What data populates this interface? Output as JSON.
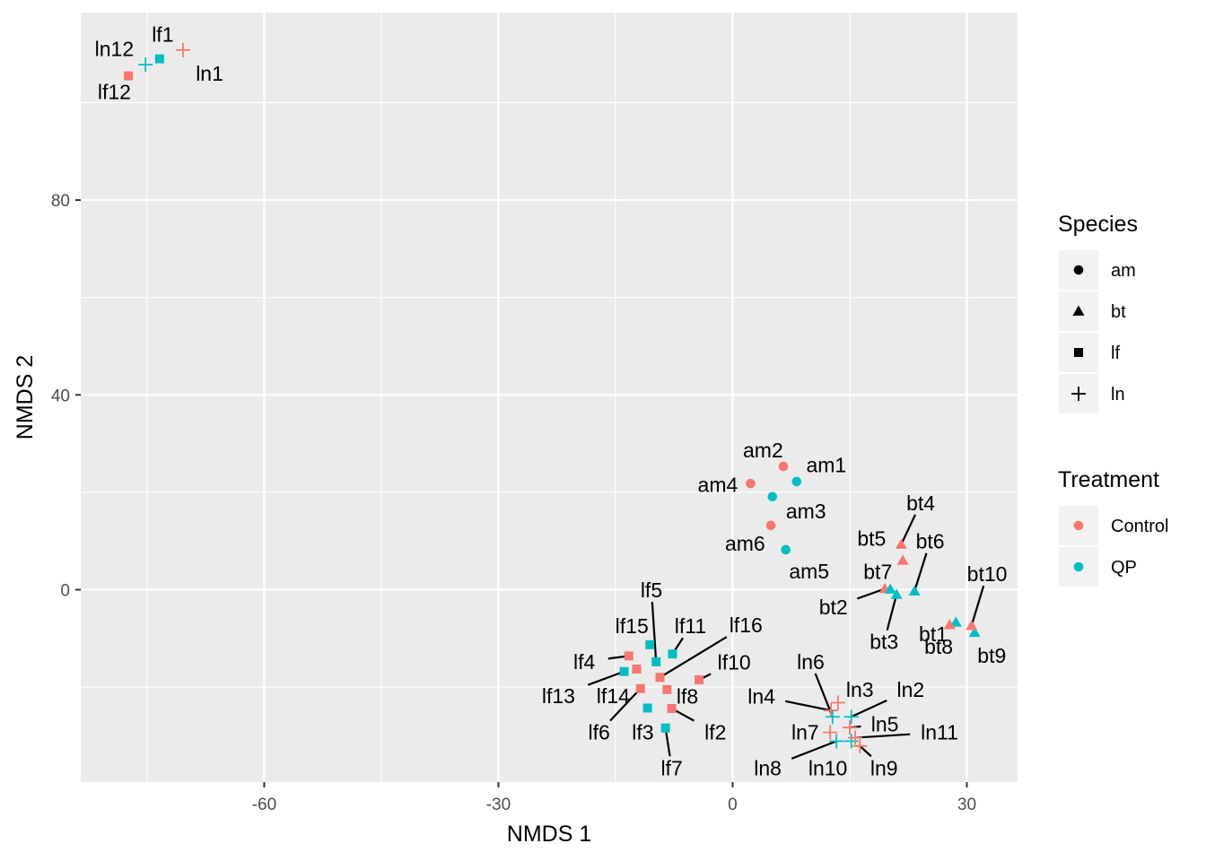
{
  "chart_data": {
    "type": "scatter",
    "xlabel": "NMDS 1",
    "ylabel": "NMDS 2",
    "xlim": [
      -83.5,
      36.5
    ],
    "ylim": [
      -39.5,
      118.5
    ],
    "xticks": [
      -60,
      -30,
      0,
      30
    ],
    "yticks": [
      0,
      40,
      80
    ],
    "grid": true,
    "legend_placement": "right",
    "colors": {
      "Control": "#f8766d",
      "QP": "#00bfc4"
    },
    "legends": [
      {
        "title": "Species",
        "entries": [
          {
            "label": "am",
            "shape": "circle"
          },
          {
            "label": "bt",
            "shape": "triangle"
          },
          {
            "label": "lf",
            "shape": "square"
          },
          {
            "label": "ln",
            "shape": "plus"
          }
        ]
      },
      {
        "title": "Treatment",
        "entries": [
          {
            "label": "Control",
            "color": "#f8766d"
          },
          {
            "label": "QP",
            "color": "#00bfc4"
          }
        ]
      }
    ],
    "points": [
      {
        "label": "lf1",
        "x": -73.4,
        "y": 109.0,
        "species": "lf",
        "treatment": "QP",
        "lx": -73.0,
        "ly": 114.0,
        "line": false
      },
      {
        "label": "ln1",
        "x": -70.4,
        "y": 110.8,
        "species": "ln",
        "treatment": "Control",
        "lx": -67.0,
        "ly": 106.0,
        "line": false
      },
      {
        "label": "ln12",
        "x": -75.2,
        "y": 107.8,
        "species": "ln",
        "treatment": "QP",
        "lx": -79.2,
        "ly": 111.0,
        "line": false
      },
      {
        "label": "lf12",
        "x": -77.4,
        "y": 105.5,
        "species": "lf",
        "treatment": "Control",
        "lx": -79.2,
        "ly": 102.2,
        "line": false
      },
      {
        "label": "am1",
        "x": 8.2,
        "y": 22.2,
        "species": "am",
        "treatment": "QP",
        "lx": 12.0,
        "ly": 25.6,
        "line": false
      },
      {
        "label": "am2",
        "x": 6.5,
        "y": 25.3,
        "species": "am",
        "treatment": "Control",
        "lx": 3.9,
        "ly": 28.6,
        "line": false
      },
      {
        "label": "am3",
        "x": 5.1,
        "y": 19.1,
        "species": "am",
        "treatment": "QP",
        "lx": 9.4,
        "ly": 16.1,
        "line": false
      },
      {
        "label": "am4",
        "x": 2.3,
        "y": 21.8,
        "species": "am",
        "treatment": "Control",
        "lx": -1.9,
        "ly": 21.5,
        "line": false
      },
      {
        "label": "am5",
        "x": 6.8,
        "y": 8.2,
        "species": "am",
        "treatment": "QP",
        "lx": 9.8,
        "ly": 3.8,
        "line": false
      },
      {
        "label": "am6",
        "x": 4.9,
        "y": 13.2,
        "species": "am",
        "treatment": "Control",
        "lx": 1.6,
        "ly": 9.5,
        "line": false
      },
      {
        "label": "bt1",
        "x": 28.6,
        "y": -6.7,
        "species": "bt",
        "treatment": "QP",
        "lx": 25.7,
        "ly": -9.1,
        "line": false
      },
      {
        "label": "bt2",
        "x": 19.5,
        "y": 0.2,
        "species": "bt",
        "treatment": "Control",
        "lx": 12.9,
        "ly": -3.6,
        "line": true
      },
      {
        "label": "bt3",
        "x": 21.0,
        "y": -1.0,
        "species": "bt",
        "treatment": "QP",
        "lx": 19.4,
        "ly": -10.7,
        "line": true
      },
      {
        "label": "bt4",
        "x": 21.6,
        "y": 9.3,
        "species": "bt",
        "treatment": "Control",
        "lx": 24.1,
        "ly": 17.8,
        "line": true
      },
      {
        "label": "bt5",
        "x": 21.8,
        "y": 6.0,
        "species": "bt",
        "treatment": "Control",
        "lx": 17.8,
        "ly": 10.5,
        "line": false
      },
      {
        "label": "bt6",
        "x": 23.3,
        "y": -0.3,
        "species": "bt",
        "treatment": "QP",
        "lx": 25.3,
        "ly": 9.9,
        "line": true
      },
      {
        "label": "bt7",
        "x": 20.2,
        "y": 0.1,
        "species": "bt",
        "treatment": "QP",
        "lx": 18.6,
        "ly": 3.7,
        "line": false
      },
      {
        "label": "bt8",
        "x": 27.8,
        "y": -7.2,
        "species": "bt",
        "treatment": "Control",
        "lx": 26.4,
        "ly": -11.7,
        "line": false
      },
      {
        "label": "bt9",
        "x": 31.0,
        "y": -8.8,
        "species": "bt",
        "treatment": "QP",
        "lx": 33.2,
        "ly": -13.5,
        "line": false
      },
      {
        "label": "bt10",
        "x": 30.6,
        "y": -7.4,
        "species": "bt",
        "treatment": "Control",
        "lx": 32.6,
        "ly": 3.2,
        "line": true
      },
      {
        "label": "lf2",
        "x": -7.8,
        "y": -24.4,
        "species": "lf",
        "treatment": "Control",
        "lx": -2.2,
        "ly": -29.3,
        "line": true
      },
      {
        "label": "lf3",
        "x": -10.9,
        "y": -24.3,
        "species": "lf",
        "treatment": "QP",
        "lx": -11.5,
        "ly": -29.3,
        "line": false
      },
      {
        "label": "lf4",
        "x": -13.3,
        "y": -13.6,
        "species": "lf",
        "treatment": "Control",
        "lx": -19.0,
        "ly": -14.8,
        "line": true
      },
      {
        "label": "lf5",
        "x": -9.8,
        "y": -14.8,
        "species": "lf",
        "treatment": "QP",
        "lx": -10.4,
        "ly": -0.1,
        "line": true
      },
      {
        "label": "lf6",
        "x": -11.8,
        "y": -20.3,
        "species": "lf",
        "treatment": "Control",
        "lx": -17.1,
        "ly": -29.3,
        "line": true
      },
      {
        "label": "lf7",
        "x": -8.6,
        "y": -28.4,
        "species": "lf",
        "treatment": "QP",
        "lx": -7.8,
        "ly": -36.6,
        "line": true
      },
      {
        "label": "lf8",
        "x": -8.4,
        "y": -20.5,
        "species": "lf",
        "treatment": "Control",
        "lx": -5.8,
        "ly": -21.9,
        "line": false
      },
      {
        "label": "lf10",
        "x": -4.3,
        "y": -18.5,
        "species": "lf",
        "treatment": "Control",
        "lx": 0.2,
        "ly": -14.9,
        "line": true
      },
      {
        "label": "lf11",
        "x": -7.7,
        "y": -13.2,
        "species": "lf",
        "treatment": "QP",
        "lx": -5.4,
        "ly": -7.5,
        "line": true
      },
      {
        "label": "lf13",
        "x": -13.9,
        "y": -16.8,
        "species": "lf",
        "treatment": "QP",
        "lx": -22.3,
        "ly": -21.8,
        "line": true
      },
      {
        "label": "lf14",
        "x": -12.3,
        "y": -16.3,
        "species": "lf",
        "treatment": "Control",
        "lx": -15.3,
        "ly": -21.8,
        "line": false
      },
      {
        "label": "lf15",
        "x": -10.6,
        "y": -11.3,
        "species": "lf",
        "treatment": "QP",
        "lx": -12.9,
        "ly": -7.5,
        "line": false
      },
      {
        "label": "lf16",
        "x": -9.3,
        "y": -18.0,
        "species": "lf",
        "treatment": "Control",
        "lx": 1.7,
        "ly": -7.3,
        "line": true
      },
      {
        "label": "ln2",
        "x": 15.2,
        "y": -26.1,
        "species": "ln",
        "treatment": "QP",
        "lx": 22.8,
        "ly": -20.5,
        "line": true
      },
      {
        "label": "ln3",
        "x": 13.5,
        "y": -23.2,
        "species": "ln",
        "treatment": "Control",
        "lx": 16.3,
        "ly": -20.5,
        "line": false
      },
      {
        "label": "ln4",
        "x": 12.6,
        "y": -24.8,
        "species": "ln",
        "treatment": "Control",
        "lx": 3.7,
        "ly": -21.9,
        "line": true
      },
      {
        "label": "ln5",
        "x": 15.0,
        "y": -28.3,
        "species": "ln",
        "treatment": "Control",
        "lx": 19.5,
        "ly": -27.6,
        "line": true
      },
      {
        "label": "ln6",
        "x": 12.8,
        "y": -26.1,
        "species": "ln",
        "treatment": "QP",
        "lx": 10.0,
        "ly": -14.8,
        "line": true
      },
      {
        "label": "ln7",
        "x": 12.5,
        "y": -29.3,
        "species": "ln",
        "treatment": "Control",
        "lx": 9.3,
        "ly": -29.3,
        "line": true
      },
      {
        "label": "ln8",
        "x": 13.3,
        "y": -31.1,
        "species": "ln",
        "treatment": "QP",
        "lx": 4.5,
        "ly": -36.6,
        "line": true
      },
      {
        "label": "ln9",
        "x": 16.3,
        "y": -32.1,
        "species": "ln",
        "treatment": "Control",
        "lx": 19.4,
        "ly": -36.6,
        "line": true
      },
      {
        "label": "ln10",
        "x": 15.2,
        "y": -31.1,
        "species": "ln",
        "treatment": "QP",
        "lx": 12.2,
        "ly": -36.6,
        "line": false
      },
      {
        "label": "ln11",
        "x": 15.7,
        "y": -30.4,
        "species": "ln",
        "treatment": "Control",
        "lx": 26.5,
        "ly": -29.3,
        "line": true
      }
    ]
  }
}
